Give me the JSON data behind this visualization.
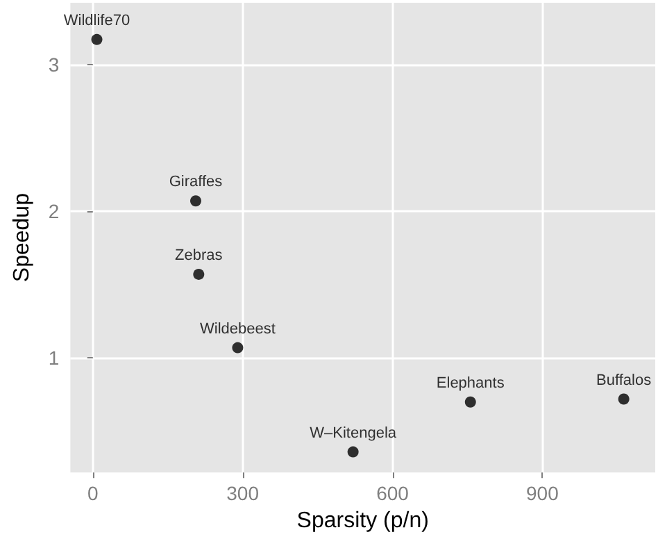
{
  "chart_data": {
    "type": "scatter",
    "xlabel": "Sparsity (p/n)",
    "ylabel": "Speedup",
    "x": [
      8,
      206,
      212,
      290,
      521,
      756,
      1063
    ],
    "values": [
      3.17,
      2.07,
      1.57,
      1.07,
      0.36,
      0.7,
      0.72
    ],
    "value_labels": [
      "Wildlife70",
      "Giraffes",
      "Zebras",
      "Wildebeest",
      "W–Kitengela",
      "Elephants",
      "Buffalos"
    ],
    "color": "#000000",
    "marker": "circle",
    "xlim": [
      -45,
      1126
    ],
    "ylim": [
      0.22,
      3.42
    ],
    "xticks": [
      0,
      300,
      600,
      900
    ],
    "yticks": [
      1,
      2,
      3
    ],
    "grid": true
  }
}
